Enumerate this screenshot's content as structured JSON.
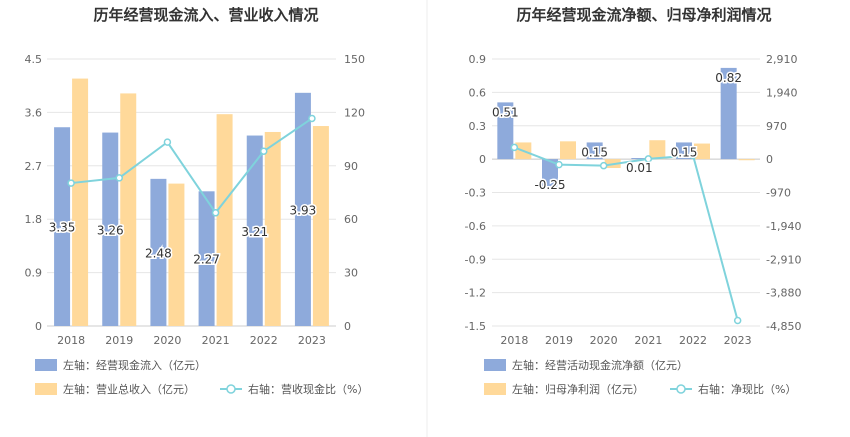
{
  "chart_data": [
    {
      "type": "bar",
      "title": "历年经营现金流入、营业收入情况",
      "categories": [
        "2018",
        "2019",
        "2020",
        "2021",
        "2022",
        "2023"
      ],
      "series": [
        {
          "name": "左轴：经营现金流入（亿元）",
          "axis": "left",
          "kind": "bar",
          "color": "#8eaadb",
          "values": [
            3.35,
            3.26,
            2.48,
            2.27,
            3.21,
            3.93
          ],
          "labels": [
            "3.35",
            "3.26",
            "2.48",
            "2.27",
            "3.21",
            "3.93"
          ]
        },
        {
          "name": "左轴：营业总收入（亿元）",
          "axis": "left",
          "kind": "bar",
          "color": "#ffd99a",
          "values": [
            4.17,
            3.92,
            2.4,
            3.57,
            3.27,
            3.37
          ]
        },
        {
          "name": "右轴：营收现金比（%）",
          "axis": "right",
          "kind": "line",
          "color": "#7fd3dc",
          "values": [
            80.3,
            83.2,
            103.3,
            63.6,
            98.2,
            116.6
          ]
        }
      ],
      "ylim_left": [
        0,
        4.5
      ],
      "yticks_left": [
        "0",
        "0.9",
        "1.8",
        "2.7",
        "3.6",
        "4.5"
      ],
      "ylim_right": [
        0,
        150
      ],
      "yticks_right": [
        "0",
        "30",
        "60",
        "90",
        "120",
        "150"
      ],
      "grid": true,
      "legend_position": "bottom"
    },
    {
      "type": "bar",
      "title": "历年经营现金流净额、归母净利润情况",
      "categories": [
        "2018",
        "2019",
        "2020",
        "2021",
        "2022",
        "2023"
      ],
      "series": [
        {
          "name": "左轴：经营活动现金流净额（亿元）",
          "axis": "left",
          "kind": "bar",
          "color": "#8eaadb",
          "values": [
            0.51,
            -0.25,
            0.15,
            0.01,
            0.15,
            0.82
          ],
          "labels": [
            "0.51",
            "-0.25",
            "0.15",
            "0.01",
            "0.15",
            "0.82"
          ]
        },
        {
          "name": "左轴：归母净利润（亿元）",
          "axis": "left",
          "kind": "bar",
          "color": "#ffd99a",
          "values": [
            0.15,
            0.16,
            -0.08,
            0.17,
            0.14,
            -0.01
          ]
        },
        {
          "name": "右轴：净现比（%）",
          "axis": "right",
          "kind": "line",
          "color": "#7fd3dc",
          "values": [
            340,
            -160,
            -190,
            6,
            110,
            -4690
          ]
        }
      ],
      "ylim_left": [
        -1.5,
        0.9
      ],
      "yticks_left": [
        "-1.5",
        "-1.2",
        "-0.9",
        "-0.6",
        "-0.3",
        "0",
        "0.3",
        "0.6",
        "0.9"
      ],
      "ylim_right": [
        -4850,
        2910
      ],
      "yticks_right": [
        "-4,850",
        "-3,880",
        "-2,910",
        "-1,940",
        "-970",
        "0",
        "970",
        "1,940",
        "2,910"
      ],
      "grid": true,
      "legend_position": "bottom"
    }
  ]
}
